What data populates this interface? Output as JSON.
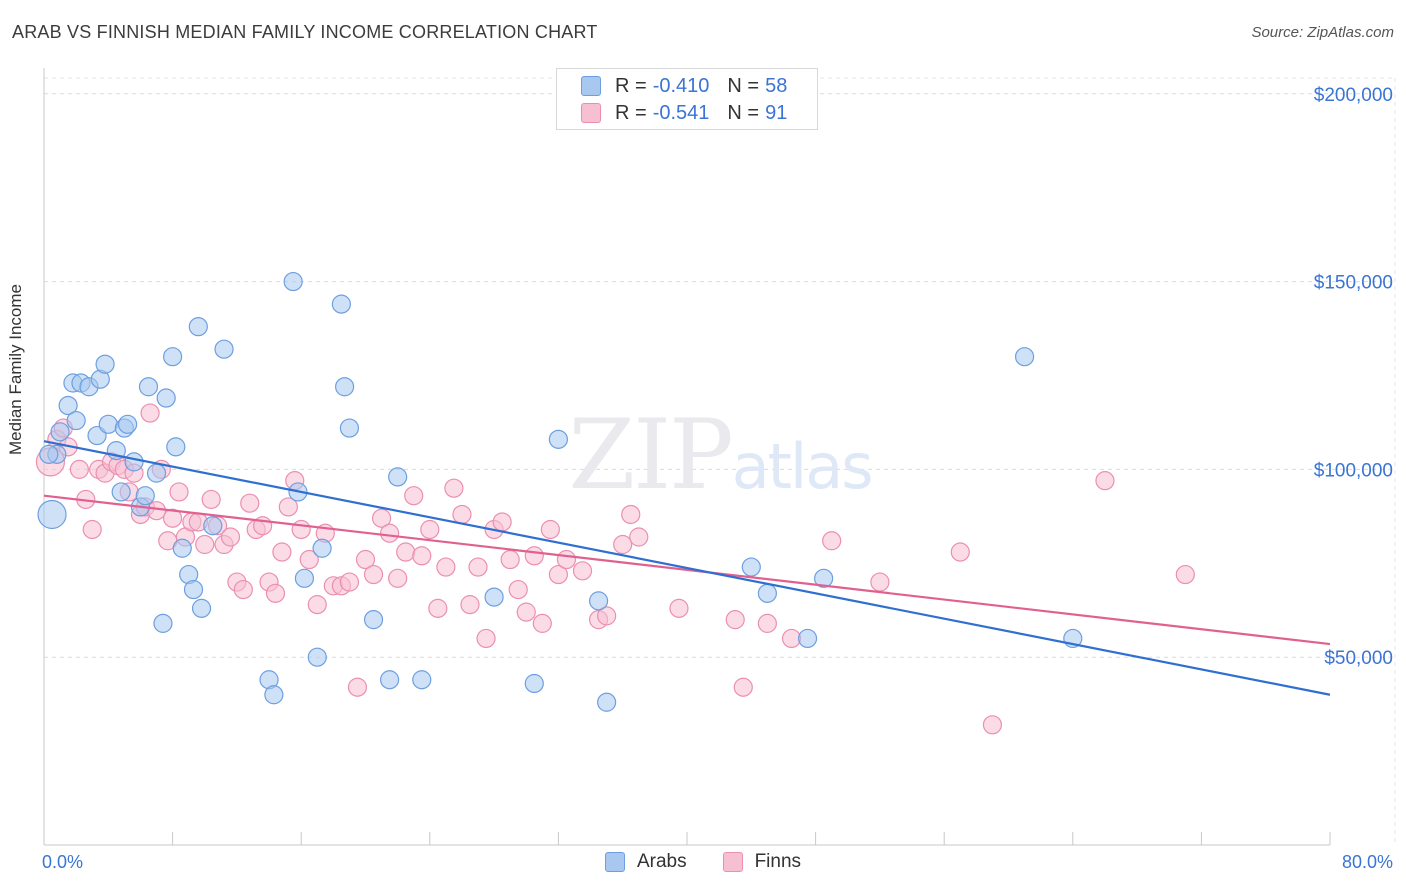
{
  "header": {
    "title": "ARAB VS FINNISH MEDIAN FAMILY INCOME CORRELATION CHART",
    "source": "Source: ZipAtlas.com"
  },
  "legend": {
    "arabs": {
      "r_label": "R =",
      "r_value": "-0.410",
      "n_label": "N =",
      "n_value": "58"
    },
    "finns": {
      "r_label": "R =",
      "r_value": "-0.541",
      "n_label": "N =",
      "n_value": "91"
    }
  },
  "colors": {
    "arabs_fill": "#a8c8f0",
    "arabs_stroke": "#6d9fe0",
    "arabs_line": "#2f6fd0",
    "finns_fill": "#f7c0d2",
    "finns_stroke": "#eb8fb0",
    "finns_line": "#e06090",
    "axis_text": "#3a74d4"
  },
  "chart_data": {
    "type": "scatter",
    "title": "ARAB VS FINNISH MEDIAN FAMILY INCOME CORRELATION CHART",
    "xlabel": "",
    "ylabel": "Median Family Income",
    "xlim": [
      0,
      80
    ],
    "ylim": [
      0,
      205000
    ],
    "x_tick_labels": [
      "0.0%",
      "80.0%"
    ],
    "y_ticks": [
      50000,
      100000,
      150000,
      200000
    ],
    "y_tick_labels": [
      "$50,000",
      "$100,000",
      "$150,000",
      "$200,000"
    ],
    "grid": true,
    "legend_position": "top-center",
    "watermark": "ZIPatlas",
    "series": [
      {
        "name": "Arabs",
        "trend": {
          "x": [
            0,
            80
          ],
          "y": [
            107500,
            40000
          ]
        },
        "points": [
          [
            0.5,
            88000
          ],
          [
            0.8,
            104000
          ],
          [
            1.0,
            110000
          ],
          [
            1.5,
            117000
          ],
          [
            1.8,
            123000
          ],
          [
            2.0,
            113000
          ],
          [
            2.3,
            123000
          ],
          [
            2.8,
            122000
          ],
          [
            3.3,
            109000
          ],
          [
            3.5,
            124000
          ],
          [
            3.8,
            128000
          ],
          [
            4.0,
            112000
          ],
          [
            4.5,
            105000
          ],
          [
            4.8,
            94000
          ],
          [
            5.0,
            111000
          ],
          [
            5.2,
            112000
          ],
          [
            5.6,
            102000
          ],
          [
            6.0,
            90000
          ],
          [
            6.3,
            93000
          ],
          [
            6.5,
            122000
          ],
          [
            7.0,
            99000
          ],
          [
            7.4,
            59000
          ],
          [
            7.6,
            119000
          ],
          [
            8.0,
            130000
          ],
          [
            8.2,
            106000
          ],
          [
            8.6,
            79000
          ],
          [
            9.0,
            72000
          ],
          [
            9.3,
            68000
          ],
          [
            9.6,
            138000
          ],
          [
            9.8,
            63000
          ],
          [
            10.5,
            85000
          ],
          [
            11.2,
            132000
          ],
          [
            14.0,
            44000
          ],
          [
            14.3,
            40000
          ],
          [
            15.5,
            150000
          ],
          [
            15.8,
            94000
          ],
          [
            16.2,
            71000
          ],
          [
            17.0,
            50000
          ],
          [
            17.3,
            79000
          ],
          [
            18.5,
            144000
          ],
          [
            18.7,
            122000
          ],
          [
            19.0,
            111000
          ],
          [
            20.5,
            60000
          ],
          [
            21.5,
            44000
          ],
          [
            22.0,
            98000
          ],
          [
            23.5,
            44000
          ],
          [
            28.0,
            66000
          ],
          [
            30.5,
            43000
          ],
          [
            32.0,
            108000
          ],
          [
            34.5,
            65000
          ],
          [
            35.0,
            38000
          ],
          [
            44.0,
            74000
          ],
          [
            45.0,
            67000
          ],
          [
            47.5,
            55000
          ],
          [
            48.5,
            71000
          ],
          [
            61.0,
            130000
          ],
          [
            64.0,
            55000
          ],
          [
            0.3,
            104000
          ]
        ]
      },
      {
        "name": "Finns",
        "trend": {
          "x": [
            0,
            80
          ],
          "y": [
            93000,
            53500
          ]
        },
        "points": [
          [
            0.4,
            102000
          ],
          [
            0.8,
            108000
          ],
          [
            1.2,
            111000
          ],
          [
            1.5,
            106000
          ],
          [
            2.2,
            100000
          ],
          [
            2.6,
            92000
          ],
          [
            3.0,
            84000
          ],
          [
            3.4,
            100000
          ],
          [
            3.8,
            99000
          ],
          [
            4.2,
            102000
          ],
          [
            4.6,
            101000
          ],
          [
            5.0,
            100000
          ],
          [
            5.3,
            94000
          ],
          [
            5.6,
            99000
          ],
          [
            6.0,
            88000
          ],
          [
            6.3,
            90000
          ],
          [
            6.6,
            115000
          ],
          [
            7.0,
            89000
          ],
          [
            7.3,
            100000
          ],
          [
            7.7,
            81000
          ],
          [
            8.0,
            87000
          ],
          [
            8.4,
            94000
          ],
          [
            8.8,
            82000
          ],
          [
            9.2,
            86000
          ],
          [
            9.6,
            86000
          ],
          [
            10.0,
            80000
          ],
          [
            10.4,
            92000
          ],
          [
            10.8,
            85000
          ],
          [
            11.2,
            80000
          ],
          [
            11.6,
            82000
          ],
          [
            12.0,
            70000
          ],
          [
            12.4,
            68000
          ],
          [
            12.8,
            91000
          ],
          [
            13.2,
            84000
          ],
          [
            13.6,
            85000
          ],
          [
            14.0,
            70000
          ],
          [
            14.4,
            67000
          ],
          [
            14.8,
            78000
          ],
          [
            15.2,
            90000
          ],
          [
            15.6,
            97000
          ],
          [
            16.0,
            84000
          ],
          [
            16.5,
            76000
          ],
          [
            17.0,
            64000
          ],
          [
            17.5,
            83000
          ],
          [
            18.0,
            69000
          ],
          [
            18.5,
            69000
          ],
          [
            19.0,
            70000
          ],
          [
            19.5,
            42000
          ],
          [
            20.0,
            76000
          ],
          [
            20.5,
            72000
          ],
          [
            21.0,
            87000
          ],
          [
            21.5,
            83000
          ],
          [
            22.0,
            71000
          ],
          [
            22.5,
            78000
          ],
          [
            23.0,
            93000
          ],
          [
            23.5,
            77000
          ],
          [
            24.0,
            84000
          ],
          [
            24.5,
            63000
          ],
          [
            25.0,
            74000
          ],
          [
            25.5,
            95000
          ],
          [
            26.0,
            88000
          ],
          [
            26.5,
            64000
          ],
          [
            27.0,
            74000
          ],
          [
            27.5,
            55000
          ],
          [
            28.0,
            84000
          ],
          [
            28.5,
            86000
          ],
          [
            29.0,
            76000
          ],
          [
            29.5,
            68000
          ],
          [
            30.0,
            62000
          ],
          [
            30.5,
            77000
          ],
          [
            31.0,
            59000
          ],
          [
            31.5,
            84000
          ],
          [
            32.0,
            72000
          ],
          [
            32.5,
            76000
          ],
          [
            33.5,
            73000
          ],
          [
            34.5,
            60000
          ],
          [
            35.0,
            61000
          ],
          [
            36.0,
            80000
          ],
          [
            36.5,
            88000
          ],
          [
            37.0,
            82000
          ],
          [
            39.5,
            63000
          ],
          [
            43.0,
            60000
          ],
          [
            43.5,
            42000
          ],
          [
            45.0,
            59000
          ],
          [
            46.5,
            55000
          ],
          [
            49.0,
            81000
          ],
          [
            52.0,
            70000
          ],
          [
            57.0,
            78000
          ],
          [
            59.0,
            32000
          ],
          [
            66.0,
            97000
          ],
          [
            71.0,
            72000
          ]
        ]
      }
    ]
  }
}
